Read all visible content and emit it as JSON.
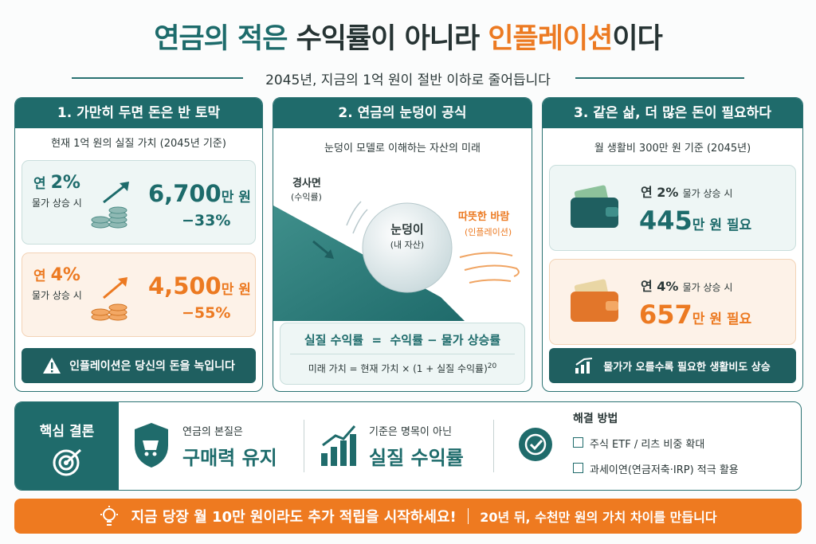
{
  "header": {
    "title_parts": [
      "연금의 적은",
      "수익률이 아니라",
      "인플레이션",
      "이다"
    ],
    "subtitle": "2045년, 지금의 1억 원이 절반 이하로 줄어듭니다"
  },
  "panels": [
    {
      "title": "1. 가만히 두면 돈은 반 토막",
      "subtitle": "현재 1억 원의 실질 가치 (2045년 기준)",
      "cards": [
        {
          "prefix": "연",
          "rate": "2%",
          "note": "물가 상승 시",
          "amount": "6,700",
          "unit": "만 원",
          "change": "−33%"
        },
        {
          "prefix": "연",
          "rate": "4%",
          "note": "물가 상승 시",
          "amount": "4,500",
          "unit": "만 원",
          "change": "−55%"
        }
      ],
      "footer": "인플레이션은 당신의 돈을 녹입니다"
    },
    {
      "title": "2. 연금의 눈덩이 공식",
      "subtitle": "눈덩이 모델로 이해하는 자산의 미래",
      "slope": {
        "label": "경사면",
        "note": "(수익률)"
      },
      "snowball": {
        "label": "눈덩이",
        "note": "(내 자산)"
      },
      "wind": {
        "label": "따뜻한 바람",
        "note": "(인플레이션)"
      },
      "formula_1": "실질 수익률  =  수익률 − 물가 상승률",
      "formula_2": "미래 가치 = 현재 가치 × (1 + 실질 수익률)",
      "formula_2_exponent": "20"
    },
    {
      "title": "3. 같은 삶, 더 많은 돈이 필요하다",
      "subtitle": "월 생활비 300만 원 기준 (2045년)",
      "cards": [
        {
          "rate": "연 2%",
          "note": "물가 상승 시",
          "amount": "445",
          "unit": "만 원 필요"
        },
        {
          "rate": "연 4%",
          "note": "물가 상승 시",
          "amount": "657",
          "unit": "만 원 필요"
        }
      ],
      "footer": "물가가 오를수록 필요한 생활비도 상승"
    }
  ],
  "conclusion": {
    "label": "핵심 결론",
    "items": [
      {
        "caption": "연금의 본질은",
        "main": "구매력 유지"
      },
      {
        "caption": "기준은 명목이 아닌",
        "main": "실질 수익률"
      }
    ],
    "solutions": {
      "title": "해결 방법",
      "items": [
        "주식 ETF / 리츠 비중 확대",
        "과세이연(연금저축·IRP) 적극 활용"
      ]
    }
  },
  "banner": {
    "left": "지금 당장 월 10만 원이라도 추가 적립을 시작하세요!",
    "right": "20년 뒤, 수천만 원의 가치 차이를 만듭니다"
  }
}
